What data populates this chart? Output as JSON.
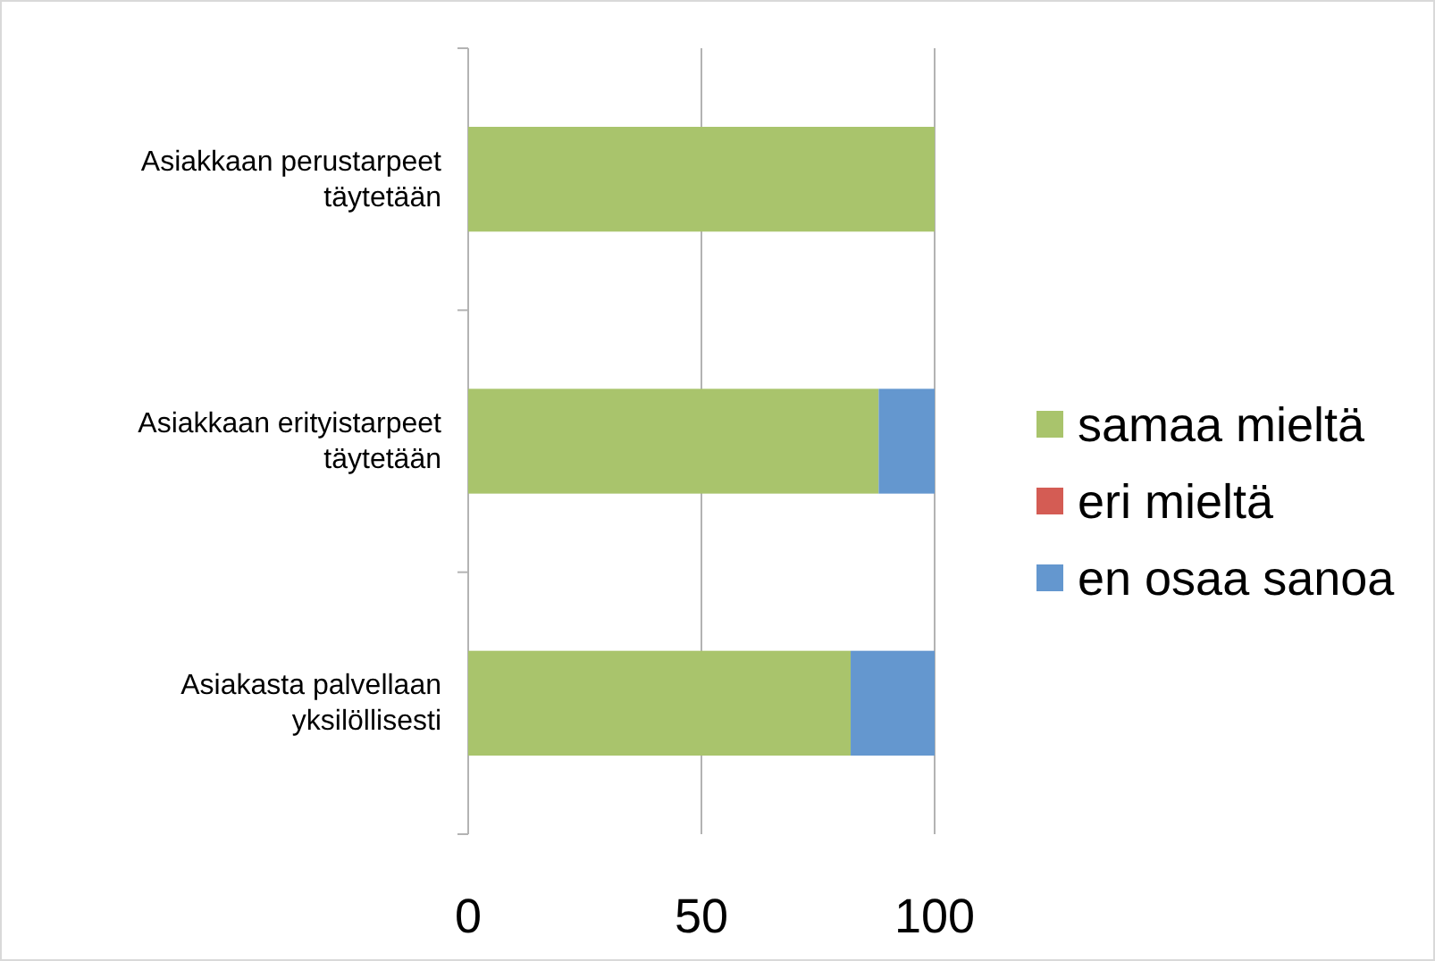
{
  "chart_data": {
    "type": "bar",
    "orientation": "horizontal",
    "stacked": true,
    "categories": [
      "Asiakkaan perustarpeet täytetään",
      "Asiakkaan erityistarpeet täytetään",
      "Asiakasta palvellaan yksilöllisesti"
    ],
    "series": [
      {
        "name": "samaa mieltä",
        "color": "#a9c46c",
        "values": [
          100,
          88,
          82
        ]
      },
      {
        "name": "eri mieltä",
        "color": "#d45c54",
        "values": [
          0,
          0,
          0
        ]
      },
      {
        "name": "en osaa sanoa",
        "color": "#6497cf",
        "values": [
          0,
          12,
          18
        ]
      }
    ],
    "xlim": [
      0,
      100
    ],
    "xticks": [
      0,
      50,
      100
    ],
    "grid": "x",
    "legend": "right"
  }
}
